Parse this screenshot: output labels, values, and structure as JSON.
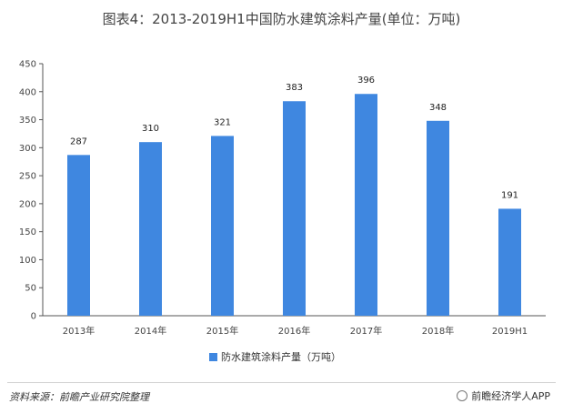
{
  "title": "图表4：2013-2019H1中国防水建筑涂料产量(单位：万吨)",
  "chart_data": {
    "type": "bar",
    "categories": [
      "2013年",
      "2014年",
      "2015年",
      "2016年",
      "2017年",
      "2018年",
      "2019H1"
    ],
    "series": [
      {
        "name": "防水建筑涂料产量（万吨）",
        "values": [
          287,
          310,
          321,
          383,
          396,
          348,
          191
        ],
        "color": "#3f87e0"
      }
    ],
    "ylim": [
      0,
      450
    ],
    "yticks": [
      0,
      50,
      100,
      150,
      200,
      250,
      300,
      350,
      400,
      450
    ],
    "grid": false,
    "legend_position": "bottom"
  },
  "footer": {
    "source": "资料来源：前瞻产业研究院整理",
    "brand": "前瞻经济学人APP"
  }
}
